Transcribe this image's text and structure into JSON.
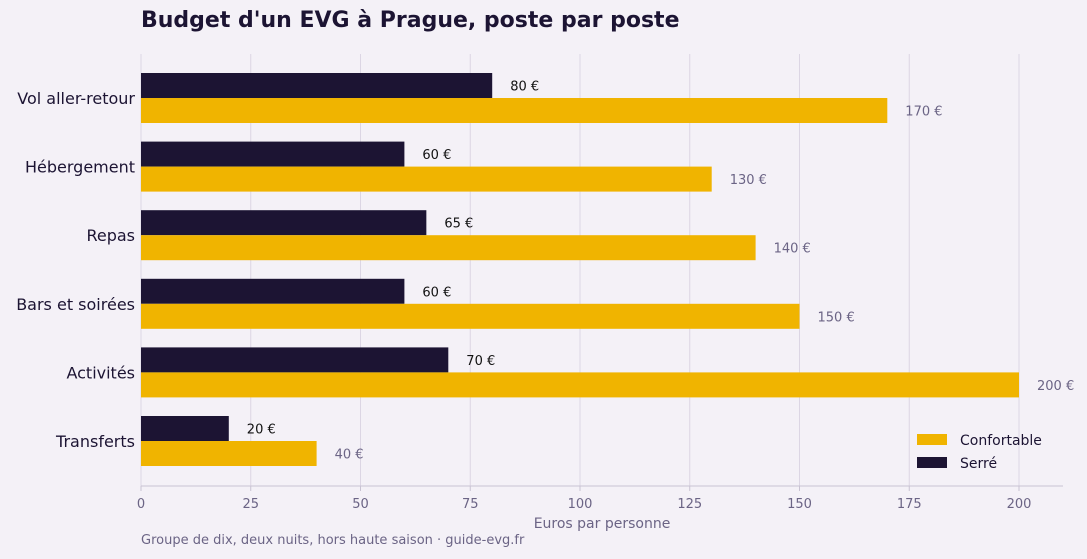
{
  "chart_data": {
    "type": "bar",
    "orientation": "horizontal",
    "title": "Budget d'un EVG à Prague, poste par poste",
    "xlabel": "Euros par personne",
    "ylabel": "",
    "xlim": [
      0,
      210
    ],
    "xticks": [
      0,
      25,
      50,
      75,
      100,
      125,
      150,
      175,
      200
    ],
    "grid": "vertical",
    "legend_position": "bottom-right",
    "categories": [
      "Vol aller-retour",
      "Hébergement",
      "Repas",
      "Bars et soirées",
      "Activités",
      "Transferts"
    ],
    "series": [
      {
        "name": "Serré",
        "color": "#1c1433",
        "label_color": "#111111",
        "values": [
          80,
          60,
          65,
          60,
          70,
          20
        ]
      },
      {
        "name": "Confortable",
        "color": "#f0b400",
        "label_color": "#6b6485",
        "values": [
          170,
          130,
          140,
          150,
          200,
          40
        ]
      }
    ],
    "legend_order": [
      "Confortable",
      "Serré"
    ],
    "value_suffix": " €",
    "footnote": "Groupe de dix, deux nuits, hors haute saison · guide-evg.fr"
  }
}
